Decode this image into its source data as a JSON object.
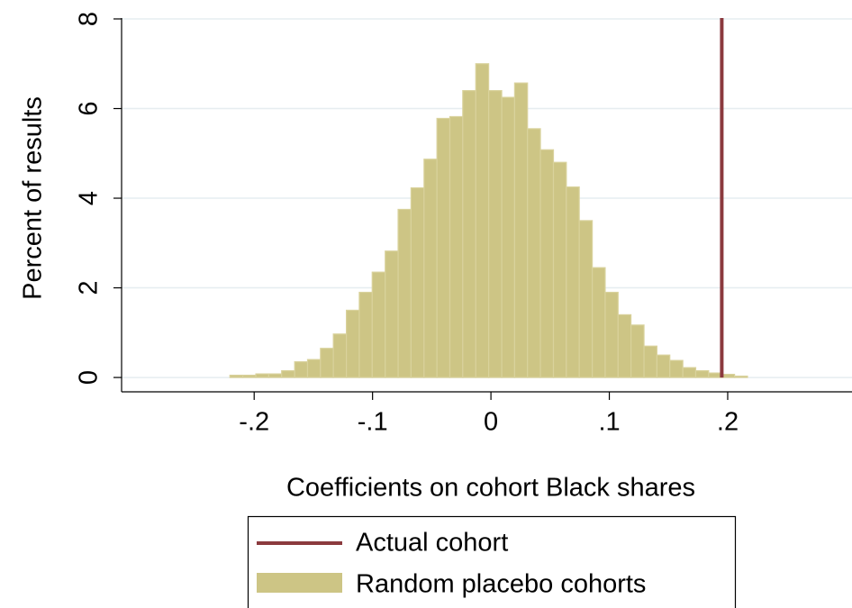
{
  "chart_data": {
    "type": "histogram",
    "x_label": "Coefficients on cohort Black shares",
    "y_label": "Percent of results",
    "bins": [
      -0.2205,
      -0.2096,
      -0.1986,
      -0.1877,
      -0.1768,
      -0.1658,
      -0.1549,
      -0.144,
      -0.1331,
      -0.1221,
      -0.1112,
      -0.1003,
      -0.0893,
      -0.0784,
      -0.0675,
      -0.0565,
      -0.0456,
      -0.0347,
      -0.0238,
      -0.0128,
      -0.0019,
      0.0091,
      0.02,
      0.0309,
      0.0418,
      0.0528,
      0.0637,
      0.0746,
      0.0856,
      0.0965,
      0.1074,
      0.1183,
      0.1293,
      0.1402,
      0.1511,
      0.1621,
      0.173,
      0.1839,
      0.1948,
      0.2058,
      0.2167
    ],
    "series": [
      {
        "name": "Random placebo cohorts",
        "color": "#cdc585",
        "values": [
          0.05,
          0.05,
          0.08,
          0.08,
          0.15,
          0.35,
          0.4,
          0.65,
          0.97,
          1.5,
          1.9,
          2.35,
          2.82,
          3.75,
          4.23,
          4.87,
          5.78,
          5.82,
          6.4,
          7.0,
          6.4,
          6.25,
          6.57,
          5.55,
          5.08,
          4.8,
          4.25,
          3.5,
          2.45,
          1.9,
          1.4,
          1.17,
          0.7,
          0.5,
          0.38,
          0.22,
          0.15,
          0.1,
          0.07,
          0.03
        ]
      }
    ],
    "reference_line": {
      "name": "Actual cohort",
      "color": "#8b3a3e",
      "x": 0.195
    },
    "xlim": [
      -0.312,
      0.305
    ],
    "ylim": [
      -0.32,
      8.02
    ],
    "xticks": [
      {
        "value": -0.2,
        "label": "-.2"
      },
      {
        "value": -0.1,
        "label": "-.1"
      },
      0,
      {
        "value": 0.1,
        "label": ".1"
      },
      {
        "value": 0.2,
        "label": ".2"
      }
    ],
    "yticks": [
      0,
      2,
      4,
      6,
      8
    ],
    "grid": true
  }
}
